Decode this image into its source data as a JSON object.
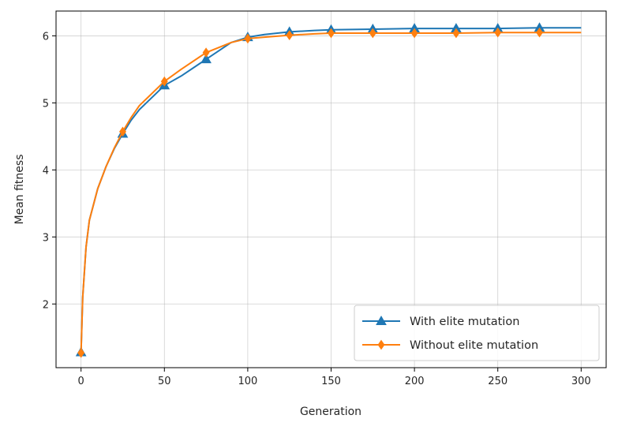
{
  "chart_data": {
    "type": "line",
    "title": "",
    "xlabel": "Generation",
    "ylabel": "Mean fitness",
    "xlim": [
      -15,
      315
    ],
    "ylim": [
      1.05,
      6.37
    ],
    "xticks": [
      0,
      50,
      100,
      150,
      200,
      250,
      300
    ],
    "yticks": [
      2,
      3,
      4,
      5,
      6
    ],
    "grid": true,
    "legend_position": "lower-right",
    "series": [
      {
        "name": "With elite mutation",
        "color": "#1f77b4",
        "marker": "triangle",
        "x": [
          0,
          1,
          3,
          5,
          10,
          15,
          20,
          25,
          30,
          35,
          40,
          50,
          60,
          75,
          90,
          100,
          110,
          125,
          140,
          150,
          175,
          200,
          225,
          250,
          275,
          300
        ],
        "y": [
          1.28,
          2.1,
          2.85,
          3.25,
          3.72,
          4.05,
          4.32,
          4.54,
          4.74,
          4.9,
          5.02,
          5.26,
          5.4,
          5.65,
          5.9,
          5.98,
          6.02,
          6.06,
          6.08,
          6.09,
          6.1,
          6.11,
          6.11,
          6.11,
          6.12,
          6.12
        ],
        "marker_x": [
          0,
          25,
          50,
          75,
          100,
          125,
          150,
          175,
          200,
          225,
          250,
          275
        ]
      },
      {
        "name": "Without elite mutation",
        "color": "#ff7f0e",
        "marker": "diamond",
        "x": [
          0,
          1,
          3,
          5,
          10,
          15,
          20,
          25,
          30,
          35,
          40,
          50,
          60,
          75,
          90,
          100,
          110,
          125,
          140,
          150,
          175,
          200,
          225,
          250,
          275,
          300
        ],
        "y": [
          1.27,
          2.1,
          2.85,
          3.25,
          3.72,
          4.05,
          4.33,
          4.57,
          4.78,
          4.96,
          5.08,
          5.32,
          5.5,
          5.75,
          5.9,
          5.96,
          5.98,
          6.01,
          6.03,
          6.04,
          6.04,
          6.04,
          6.04,
          6.05,
          6.05,
          6.05
        ],
        "marker_x": [
          0,
          25,
          50,
          75,
          100,
          125,
          150,
          175,
          200,
          225,
          250,
          275
        ]
      }
    ]
  }
}
